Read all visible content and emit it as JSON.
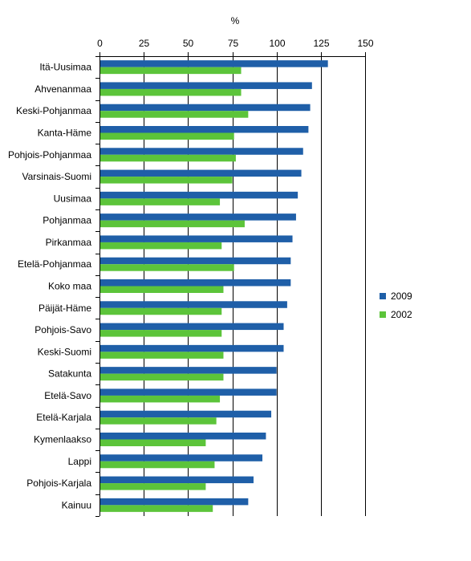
{
  "chart_data": {
    "type": "bar",
    "orientation": "horizontal",
    "title": "",
    "xlabel": "%",
    "ylabel": "",
    "xlim": [
      0,
      150
    ],
    "x_ticks": [
      0,
      25,
      50,
      75,
      100,
      125,
      150
    ],
    "x_axis_position": "top",
    "grid": "vertical",
    "legend_position": "right",
    "categories": [
      "Itä-Uusimaa",
      "Ahvenanmaa",
      "Keski-Pohjanmaa",
      "Kanta-Häme",
      "Pohjois-Pohjanmaa",
      "Varsinais-Suomi",
      "Uusimaa",
      "Pohjanmaa",
      "Pirkanmaa",
      "Etelä-Pohjanmaa",
      "Koko maa",
      "Päijät-Häme",
      "Pohjois-Savo",
      "Keski-Suomi",
      "Satakunta",
      "Etelä-Savo",
      "Etelä-Karjala",
      "Kymenlaakso",
      "Lappi",
      "Pohjois-Karjala",
      "Kainuu"
    ],
    "series": [
      {
        "name": "2009",
        "color": "#1f5fa8",
        "values": [
          129,
          120,
          119,
          118,
          115,
          114,
          112,
          111,
          109,
          108,
          108,
          106,
          104,
          104,
          100,
          100,
          97,
          94,
          92,
          87,
          84
        ]
      },
      {
        "name": "2002",
        "color": "#5cc43a",
        "values": [
          80,
          80,
          84,
          76,
          77,
          75,
          68,
          82,
          69,
          76,
          70,
          69,
          69,
          70,
          70,
          68,
          66,
          60,
          65,
          60,
          64
        ]
      }
    ]
  }
}
